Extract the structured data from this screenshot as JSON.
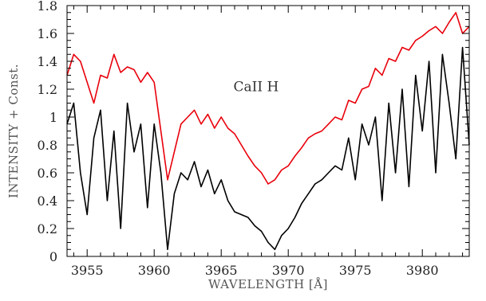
{
  "chart_data": {
    "type": "line",
    "title": "",
    "xlabel": "WAVELENGTH [Å]",
    "ylabel": "INTENSITY + Const.",
    "xlim": [
      3953.5,
      3983.5
    ],
    "ylim": [
      0,
      1.8
    ],
    "x_ticks": [
      "3955",
      "3960",
      "3965",
      "3970",
      "3975",
      "3980"
    ],
    "y_ticks": [
      "0",
      "0.2",
      "0.4",
      "0.6",
      "0.8",
      "1",
      "1.2",
      "1.4",
      "1.6",
      "1.8"
    ],
    "annotation": "CaII H",
    "grid": false,
    "legend": "none",
    "series": [
      {
        "color": "#e8000b",
        "x": [
          3953.5,
          3954,
          3954.5,
          3955,
          3955.5,
          3956,
          3956.5,
          3957,
          3957.5,
          3958,
          3958.5,
          3959,
          3959.5,
          3960,
          3960.5,
          3961,
          3961.5,
          3962,
          3962.5,
          3963,
          3963.5,
          3964,
          3964.5,
          3965,
          3965.5,
          3966,
          3966.5,
          3967,
          3967.5,
          3968,
          3968.5,
          3969,
          3969.5,
          3970,
          3970.5,
          3971,
          3971.5,
          3972,
          3972.5,
          3973,
          3973.5,
          3974,
          3974.5,
          3975,
          3975.5,
          3976,
          3976.5,
          3977,
          3977.5,
          3978,
          3978.5,
          3979,
          3979.5,
          3980,
          3980.5,
          3981,
          3981.5,
          3982,
          3982.5,
          3983,
          3983.5
        ],
        "y": [
          1.3,
          1.45,
          1.4,
          1.25,
          1.1,
          1.3,
          1.28,
          1.45,
          1.32,
          1.36,
          1.34,
          1.25,
          1.32,
          1.25,
          0.9,
          0.55,
          0.75,
          0.95,
          1.0,
          1.05,
          0.95,
          1.02,
          0.92,
          1.0,
          0.92,
          0.88,
          0.8,
          0.72,
          0.65,
          0.6,
          0.52,
          0.55,
          0.62,
          0.65,
          0.72,
          0.78,
          0.85,
          0.88,
          0.9,
          0.95,
          1.0,
          0.98,
          1.12,
          1.1,
          1.2,
          1.22,
          1.35,
          1.3,
          1.42,
          1.4,
          1.5,
          1.48,
          1.55,
          1.58,
          1.62,
          1.65,
          1.6,
          1.68,
          1.75,
          1.6,
          1.65
        ]
      },
      {
        "color": "#000000",
        "x": [
          3953.5,
          3954,
          3954.5,
          3955,
          3955.5,
          3956,
          3956.5,
          3957,
          3957.5,
          3958,
          3958.5,
          3959,
          3959.5,
          3960,
          3960.5,
          3961,
          3961.5,
          3962,
          3962.5,
          3963,
          3963.5,
          3964,
          3964.5,
          3965,
          3965.5,
          3966,
          3966.5,
          3967,
          3967.5,
          3968,
          3968.5,
          3969,
          3969.5,
          3970,
          3970.5,
          3971,
          3971.5,
          3972,
          3972.5,
          3973,
          3973.5,
          3974,
          3974.5,
          3975,
          3975.5,
          3976,
          3976.5,
          3977,
          3977.5,
          3978,
          3978.5,
          3979,
          3979.5,
          3980,
          3980.5,
          3981,
          3981.5,
          3982,
          3982.5,
          3983,
          3983.5
        ],
        "y": [
          0.95,
          1.1,
          0.6,
          0.3,
          0.85,
          1.05,
          0.4,
          0.9,
          0.2,
          1.1,
          0.75,
          0.95,
          0.35,
          0.95,
          0.6,
          0.05,
          0.45,
          0.6,
          0.55,
          0.68,
          0.5,
          0.62,
          0.45,
          0.55,
          0.4,
          0.32,
          0.3,
          0.28,
          0.22,
          0.18,
          0.1,
          0.05,
          0.15,
          0.2,
          0.28,
          0.38,
          0.45,
          0.52,
          0.55,
          0.6,
          0.65,
          0.62,
          0.85,
          0.55,
          0.95,
          0.8,
          1.0,
          0.4,
          1.1,
          0.6,
          1.2,
          0.5,
          1.3,
          0.9,
          1.4,
          0.6,
          1.45,
          1.1,
          0.7,
          1.5,
          0.8
        ]
      }
    ]
  }
}
